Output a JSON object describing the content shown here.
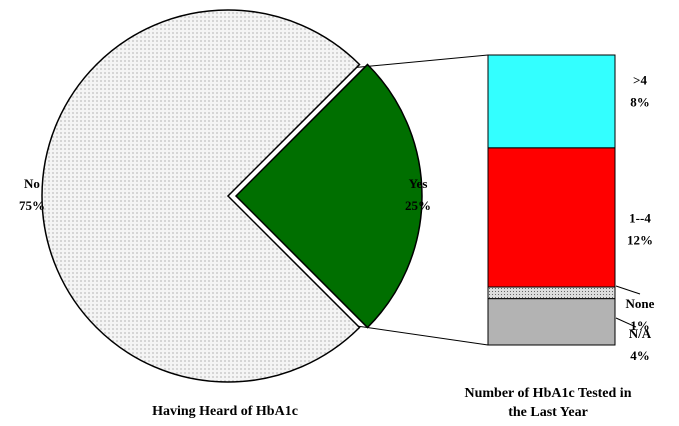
{
  "chart_data": [
    {
      "type": "pie",
      "title": "Having Heard of HbA1c",
      "categories": [
        "No",
        "Yes"
      ],
      "values": [
        75,
        25
      ],
      "value_labels": [
        "75%",
        "25%"
      ],
      "colors": [
        "#f0f0f0",
        "#006f00"
      ]
    },
    {
      "type": "stacked-bar",
      "title": "Number of HbA1c Tested in the Last Year",
      "categories": [
        "N/A",
        "None",
        "1--4",
        ">4"
      ],
      "values": [
        4,
        1,
        12,
        8
      ],
      "value_labels": [
        "4%",
        "1%",
        "12%",
        "8%"
      ],
      "colors": [
        "#b3b3b3",
        "#cccccc",
        "#ff0000",
        "#33ffff"
      ]
    }
  ]
}
